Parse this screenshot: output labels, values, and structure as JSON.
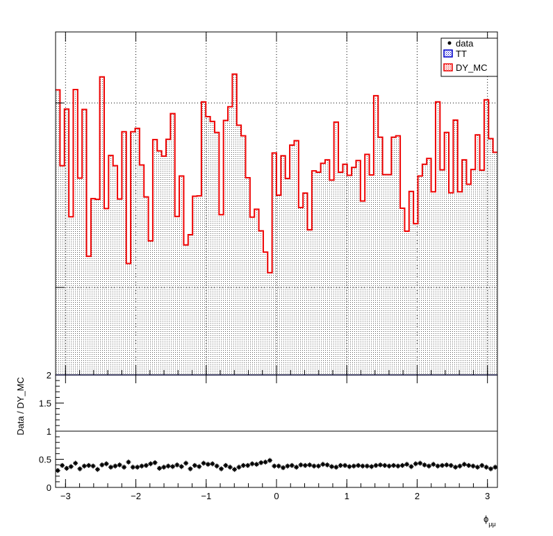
{
  "chart_data": [
    {
      "type": "histogram",
      "title": "",
      "xlabel": "",
      "ylabel": "",
      "xlim": [
        -3.1416,
        3.1416
      ],
      "ylim": [
        0,
        1
      ],
      "grid": true,
      "legend_position": "top-right",
      "legend": [
        {
          "label": "data",
          "marker": "dot",
          "color": "#000000"
        },
        {
          "label": "TT",
          "marker": "hatched-box",
          "color": "#0000cc"
        },
        {
          "label": "DY_MC",
          "marker": "hatched-box",
          "color": "#ee0000"
        }
      ],
      "series": [
        {
          "name": "DY_MC",
          "color": "#ee0000",
          "fill": "dotted",
          "bin_edges": [
            -3.1416,
            3.1416
          ],
          "nbins": 100,
          "values": [
            0.831,
            0.61,
            0.775,
            0.461,
            0.832,
            0.574,
            0.774,
            0.346,
            0.514,
            0.512,
            0.869,
            0.485,
            0.64,
            0.61,
            0.513,
            0.709,
            0.325,
            0.709,
            0.719,
            0.612,
            0.519,
            0.391,
            0.686,
            0.653,
            0.638,
            0.687,
            0.762,
            0.462,
            0.58,
            0.379,
            0.409,
            0.521,
            0.522,
            0.796,
            0.753,
            0.739,
            0.707,
            0.467,
            0.742,
            0.782,
            0.877,
            0.728,
            0.697,
            0.575,
            0.46,
            0.483,
            0.42,
            0.358,
            0.298,
            0.647,
            0.524,
            0.639,
            0.573,
            0.67,
            0.683,
            0.488,
            0.53,
            0.423,
            0.595,
            0.591,
            0.617,
            0.627,
            0.568,
            0.737,
            0.591,
            0.614,
            0.582,
            0.605,
            0.625,
            0.507,
            0.643,
            0.583,
            0.814,
            0.693,
            0.584,
            0.584,
            0.693,
            0.697,
            0.486,
            0.419,
            0.535,
            0.441,
            0.58,
            0.614,
            0.631,
            0.534,
            0.796,
            0.598,
            0.707,
            0.531,
            0.743,
            0.534,
            0.627,
            0.556,
            0.599,
            0.7,
            0.597,
            0.802,
            0.689,
            0.649
          ]
        }
      ],
      "y_axis_ticks_major": [
        0.255,
        0.793
      ]
    },
    {
      "type": "scatter",
      "title": "",
      "xlabel": "ϕ_μμ",
      "ylabel": "Data / DY_MC",
      "xlim": [
        -3.1416,
        3.1416
      ],
      "ylim": [
        0,
        2
      ],
      "x_ticks": [
        -3,
        -2,
        -1,
        0,
        1,
        2,
        3
      ],
      "y_ticks": [
        0,
        0.5,
        1,
        1.5,
        2
      ],
      "x_tick_labels": [
        "−3",
        "−2",
        "−1",
        "0",
        "1",
        "2",
        "3"
      ],
      "y_tick_labels": [
        "0",
        "0.5",
        "1",
        "1.5",
        "2"
      ],
      "reference_line": 1,
      "series": [
        {
          "name": "Data / DY_MC",
          "color": "#000000",
          "marker": "star",
          "values": [
            0.3,
            0.39,
            0.34,
            0.37,
            0.43,
            0.33,
            0.38,
            0.39,
            0.38,
            0.32,
            0.4,
            0.42,
            0.36,
            0.38,
            0.4,
            0.36,
            0.45,
            0.36,
            0.36,
            0.38,
            0.39,
            0.42,
            0.44,
            0.34,
            0.36,
            0.38,
            0.37,
            0.4,
            0.37,
            0.43,
            0.33,
            0.39,
            0.37,
            0.43,
            0.41,
            0.42,
            0.38,
            0.33,
            0.39,
            0.36,
            0.32,
            0.36,
            0.39,
            0.39,
            0.42,
            0.41,
            0.44,
            0.45,
            0.48,
            0.38,
            0.38,
            0.35,
            0.38,
            0.39,
            0.36,
            0.4,
            0.39,
            0.4,
            0.38,
            0.38,
            0.41,
            0.4,
            0.37,
            0.36,
            0.39,
            0.39,
            0.37,
            0.38,
            0.39,
            0.38,
            0.38,
            0.37,
            0.39,
            0.4,
            0.39,
            0.38,
            0.39,
            0.38,
            0.39,
            0.41,
            0.37,
            0.42,
            0.43,
            0.4,
            0.38,
            0.41,
            0.38,
            0.39,
            0.4,
            0.39,
            0.36,
            0.38,
            0.41,
            0.39,
            0.38,
            0.36,
            0.39,
            0.36,
            0.33,
            0.36
          ]
        }
      ]
    }
  ]
}
